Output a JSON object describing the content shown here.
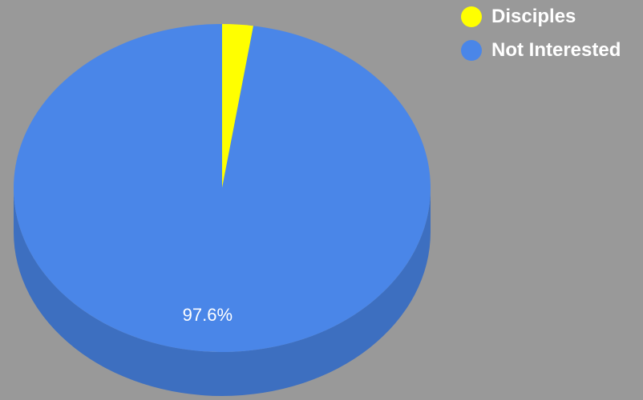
{
  "chart_data": {
    "type": "pie",
    "style": "3d",
    "slices": [
      {
        "label": "Disciples",
        "value": 2.4,
        "color": "#FFFF00",
        "side_color": "#CCCC00"
      },
      {
        "label": "Not Interested",
        "value": 97.6,
        "color": "#4A86E8",
        "side_color": "#3D6FC0",
        "data_label": "97.6%"
      }
    ],
    "legend_position": "top-right",
    "background_color": "#999999"
  }
}
